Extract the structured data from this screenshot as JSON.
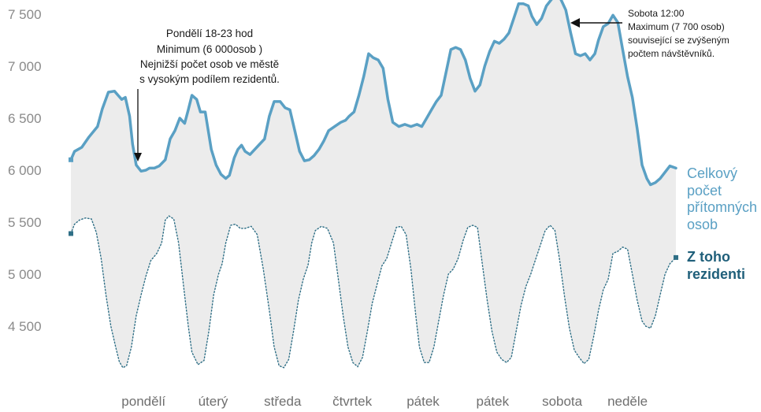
{
  "chart_data": {
    "type": "area",
    "y_ticks": [
      "7 500",
      "7 000",
      "6 500",
      "6 000",
      "5 500",
      "5 000",
      "4 500"
    ],
    "y_tick_values": [
      7500,
      7000,
      6500,
      6000,
      5500,
      5000,
      4500
    ],
    "ylim": [
      4200,
      7750
    ],
    "xlim": [
      0,
      1
    ],
    "days": [
      "pondělí",
      "úterý",
      "středa",
      "čtvrtek",
      "pátek",
      "pátek",
      "sobota",
      "neděle"
    ],
    "legend": {
      "total": [
        "Celkový",
        "počet",
        "přítomných",
        "osob"
      ],
      "residents": [
        "Z toho",
        "rezidenti"
      ]
    },
    "annotations": {
      "minimum": [
        "Pondělí 18-23 hod",
        "Minimum (6 000osob )",
        "Nejnižší počet osob ve městě",
        "s vysokým podílem rezidentů."
      ],
      "maximum": [
        "Sobota 12:00",
        "Maximum (7 700 osob)",
        "související se zvýšeným",
        "počtem návštěvníků."
      ]
    },
    "colors": {
      "total": "#5aa0c4",
      "residents": "#2f6f86",
      "fill": "#ececec"
    },
    "series": [
      {
        "name": "Celkový počet přítomných osob",
        "x": [
          0.0,
          0.006,
          0.018,
          0.03,
          0.044,
          0.052,
          0.062,
          0.072,
          0.078,
          0.084,
          0.09,
          0.097,
          0.102,
          0.108,
          0.116,
          0.124,
          0.13,
          0.138,
          0.146,
          0.156,
          0.164,
          0.172,
          0.18,
          0.188,
          0.194,
          0.2,
          0.208,
          0.214,
          0.222,
          0.232,
          0.24,
          0.248,
          0.256,
          0.262,
          0.27,
          0.276,
          0.282,
          0.288,
          0.296,
          0.304,
          0.312,
          0.32,
          0.328,
          0.336,
          0.346,
          0.354,
          0.362,
          0.37,
          0.378,
          0.386,
          0.394,
          0.402,
          0.41,
          0.418,
          0.426,
          0.436,
          0.446,
          0.454,
          0.46,
          0.468,
          0.476,
          0.484,
          0.492,
          0.5,
          0.508,
          0.516,
          0.524,
          0.532,
          0.542,
          0.552,
          0.562,
          0.572,
          0.58,
          0.588,
          0.596,
          0.604,
          0.612,
          0.62,
          0.628,
          0.636,
          0.644,
          0.652,
          0.66,
          0.668,
          0.676,
          0.684,
          0.692,
          0.7,
          0.708,
          0.716,
          0.724,
          0.732,
          0.74,
          0.748,
          0.756,
          0.762,
          0.77,
          0.778,
          0.786,
          0.794,
          0.802,
          0.81,
          0.818,
          0.826,
          0.834,
          0.842,
          0.85,
          0.858,
          0.866,
          0.872,
          0.88,
          0.888,
          0.896,
          0.904,
          0.912,
          0.92,
          0.928,
          0.936,
          0.944,
          0.952,
          0.958,
          0.966,
          0.974,
          0.982,
          0.99,
          1.0
        ],
        "y": [
          6100,
          6180,
          6220,
          6320,
          6420,
          6590,
          6750,
          6760,
          6720,
          6680,
          6700,
          6520,
          6250,
          6050,
          5990,
          6000,
          6020,
          6020,
          6040,
          6100,
          6300,
          6380,
          6500,
          6450,
          6580,
          6720,
          6680,
          6560,
          6560,
          6200,
          6050,
          5960,
          5920,
          5950,
          6120,
          6200,
          6240,
          6180,
          6150,
          6200,
          6250,
          6300,
          6520,
          6660,
          6660,
          6600,
          6580,
          6380,
          6180,
          6090,
          6100,
          6140,
          6200,
          6280,
          6380,
          6420,
          6460,
          6480,
          6520,
          6560,
          6720,
          6900,
          7120,
          7080,
          7060,
          6980,
          6680,
          6460,
          6420,
          6440,
          6420,
          6440,
          6420,
          6500,
          6580,
          6660,
          6720,
          6940,
          7160,
          7180,
          7160,
          7060,
          6880,
          6760,
          6820,
          7000,
          7140,
          7240,
          7220,
          7260,
          7320,
          7460,
          7600,
          7600,
          7580,
          7480,
          7400,
          7460,
          7580,
          7640,
          7690,
          7640,
          7540,
          7320,
          7120,
          7100,
          7120,
          7060,
          7120,
          7250,
          7380,
          7410,
          7490,
          7420,
          7160,
          6900,
          6700,
          6400,
          6050,
          5920,
          5860,
          5880,
          5920,
          5980,
          6040,
          6020
        ]
      },
      {
        "name": "Z toho rezidenti",
        "x": [
          0.0,
          0.006,
          0.014,
          0.024,
          0.034,
          0.042,
          0.05,
          0.058,
          0.066,
          0.074,
          0.08,
          0.086,
          0.092,
          0.1,
          0.108,
          0.116,
          0.124,
          0.132,
          0.142,
          0.15,
          0.156,
          0.162,
          0.17,
          0.178,
          0.186,
          0.194,
          0.2,
          0.21,
          0.22,
          0.228,
          0.236,
          0.244,
          0.25,
          0.256,
          0.264,
          0.272,
          0.28,
          0.288,
          0.298,
          0.308,
          0.318,
          0.328,
          0.336,
          0.344,
          0.352,
          0.36,
          0.368,
          0.376,
          0.384,
          0.392,
          0.398,
          0.404,
          0.414,
          0.424,
          0.434,
          0.442,
          0.45,
          0.458,
          0.466,
          0.474,
          0.482,
          0.49,
          0.498,
          0.506,
          0.514,
          0.522,
          0.53,
          0.538,
          0.546,
          0.554,
          0.562,
          0.57,
          0.576,
          0.584,
          0.592,
          0.6,
          0.608,
          0.616,
          0.624,
          0.632,
          0.64,
          0.648,
          0.656,
          0.664,
          0.672,
          0.68,
          0.688,
          0.696,
          0.704,
          0.712,
          0.72,
          0.728,
          0.736,
          0.744,
          0.752,
          0.76,
          0.768,
          0.776,
          0.784,
          0.792,
          0.8,
          0.808,
          0.816,
          0.824,
          0.832,
          0.84,
          0.848,
          0.856,
          0.864,
          0.872,
          0.88,
          0.888,
          0.896,
          0.904,
          0.912,
          0.92,
          0.928,
          0.936,
          0.944,
          0.95,
          0.958,
          0.966,
          0.974,
          0.982,
          0.99,
          1.0
        ],
        "y": [
          5390,
          5480,
          5520,
          5540,
          5530,
          5400,
          5150,
          4800,
          4500,
          4300,
          4160,
          4100,
          4120,
          4300,
          4600,
          4800,
          4980,
          5130,
          5200,
          5300,
          5520,
          5560,
          5530,
          5300,
          4900,
          4500,
          4250,
          4130,
          4170,
          4450,
          4800,
          5000,
          5100,
          5300,
          5470,
          5480,
          5440,
          5440,
          5460,
          5380,
          5050,
          4650,
          4300,
          4120,
          4100,
          4180,
          4450,
          4750,
          4950,
          5090,
          5300,
          5420,
          5460,
          5440,
          5300,
          4950,
          4600,
          4300,
          4150,
          4110,
          4200,
          4450,
          4720,
          4900,
          5080,
          5150,
          5300,
          5450,
          5460,
          5380,
          5050,
          4600,
          4300,
          4150,
          4150,
          4300,
          4550,
          4800,
          5000,
          5050,
          5150,
          5320,
          5450,
          5470,
          5450,
          5100,
          4750,
          4450,
          4250,
          4180,
          4150,
          4200,
          4450,
          4700,
          4880,
          5000,
          5140,
          5280,
          5420,
          5470,
          5420,
          5130,
          4780,
          4480,
          4270,
          4200,
          4140,
          4180,
          4400,
          4650,
          4850,
          4950,
          5200,
          5220,
          5260,
          5240,
          5000,
          4750,
          4550,
          4500,
          4480,
          4600,
          4800,
          5000,
          5100,
          5160
        ]
      }
    ]
  }
}
